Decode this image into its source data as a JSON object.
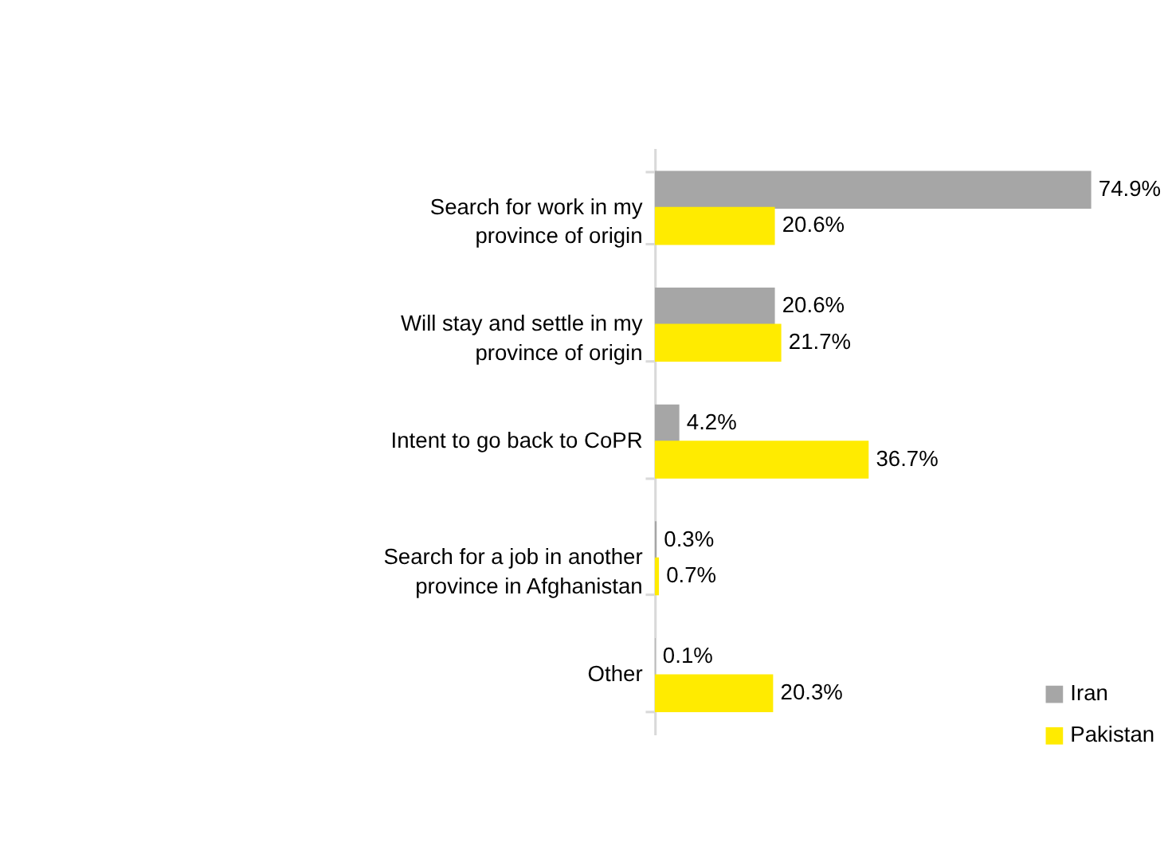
{
  "chart_data": {
    "type": "bar",
    "orientation": "horizontal",
    "categories": [
      "Search for work in my province of origin",
      "Will stay and settle in my province of origin",
      "Intent to go back to CoPR",
      "Search for a job in another province in Afghanistan",
      "Other"
    ],
    "series": [
      {
        "name": "Iran",
        "color": "#a6a6a6",
        "values": [
          74.9,
          20.6,
          4.2,
          0.3,
          0.1
        ],
        "value_labels": [
          "74.9%",
          "20.6%",
          "4.2%",
          "0.3%",
          "0.1%"
        ]
      },
      {
        "name": "Pakistan",
        "color": "#ffeb00",
        "values": [
          20.6,
          21.7,
          36.7,
          0.7,
          20.3
        ],
        "value_labels": [
          "20.6%",
          "21.7%",
          "36.7%",
          "0.7%",
          "20.3%"
        ]
      }
    ],
    "legend": "bottom right"
  }
}
